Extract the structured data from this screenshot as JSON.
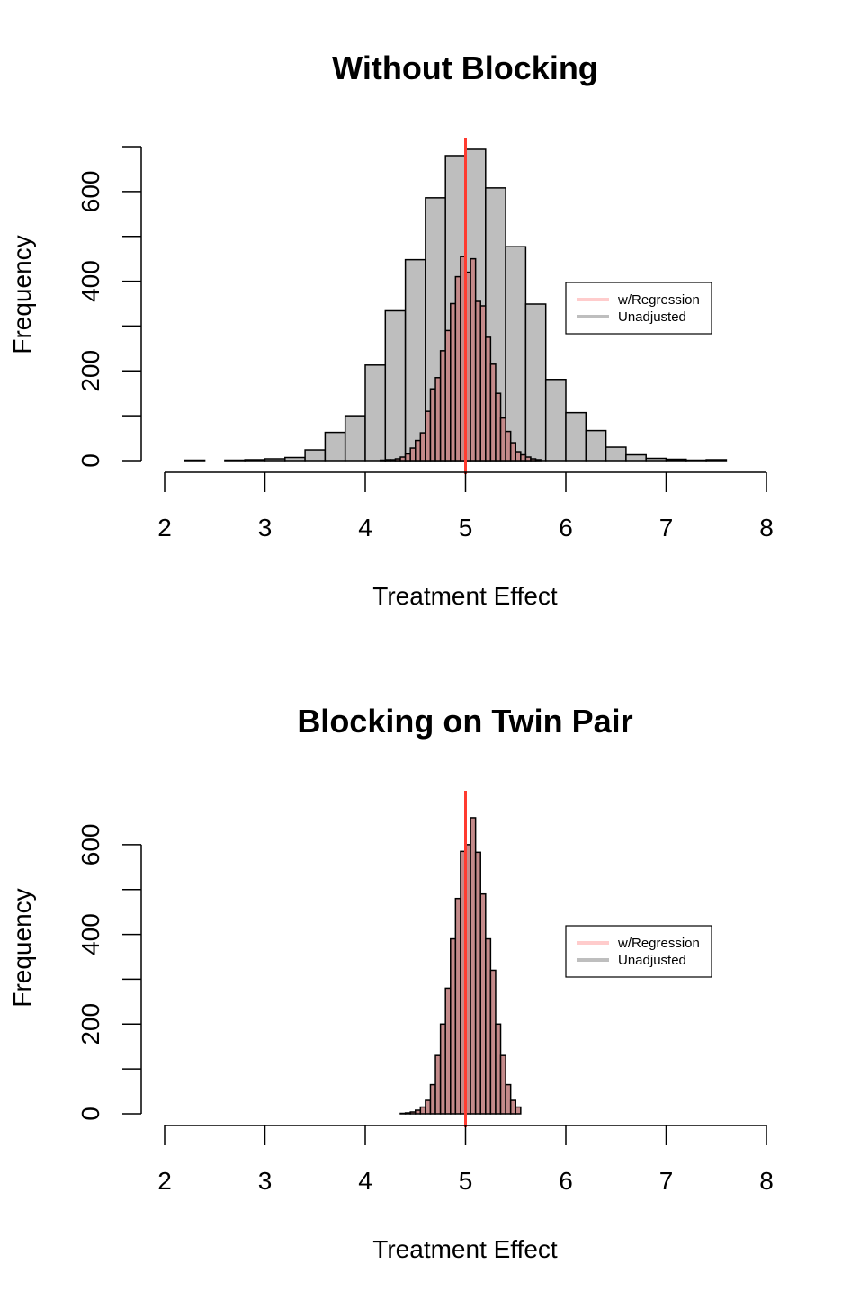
{
  "colors": {
    "unadjusted_fill": "#bebebe",
    "regression_fill": "#c48a8a",
    "bar_stroke": "#000000",
    "true_effect_line": "#ff3b30",
    "legend_regression": "#ffcccc",
    "legend_unadjusted": "#bebebe"
  },
  "chart_data": [
    {
      "type": "histogram",
      "title": "Without Blocking",
      "xlabel": "Treatment Effect",
      "ylabel": "Frequency",
      "xlim": [
        2,
        8
      ],
      "ylim": [
        0,
        700
      ],
      "x_ticks": [
        "2",
        "3",
        "4",
        "5",
        "6",
        "7",
        "8"
      ],
      "y_ticks": [
        "0",
        "200",
        "400",
        "600"
      ],
      "y_minor_ticks": [
        100,
        300,
        500,
        700
      ],
      "true_effect": 5,
      "legend": {
        "placement": "right",
        "entries": [
          "w/Regression",
          "Unadjusted"
        ]
      },
      "series": [
        {
          "name": "Unadjusted",
          "bin_width": 0.2,
          "bin_starts": [
            2.2,
            2.4,
            2.6,
            2.8,
            3.0,
            3.2,
            3.4,
            3.6,
            3.8,
            4.0,
            4.2,
            4.4,
            4.6,
            4.8,
            5.0,
            5.2,
            5.4,
            5.6,
            5.8,
            6.0,
            6.2,
            6.4,
            6.6,
            6.8,
            7.0,
            7.2,
            7.4
          ],
          "counts": [
            1,
            0,
            1,
            2,
            4,
            7,
            24,
            63,
            100,
            213,
            334,
            448,
            586,
            680,
            694,
            608,
            477,
            349,
            181,
            107,
            67,
            30,
            13,
            5,
            3,
            1,
            2
          ]
        },
        {
          "name": "w/Regression",
          "bin_width": 0.05,
          "bin_starts": [
            4.15,
            4.2,
            4.25,
            4.3,
            4.35,
            4.4,
            4.45,
            4.5,
            4.55,
            4.6,
            4.65,
            4.7,
            4.75,
            4.8,
            4.85,
            4.9,
            4.95,
            5.0,
            5.05,
            5.1,
            5.15,
            5.2,
            5.25,
            5.3,
            5.35,
            5.4,
            5.45,
            5.5,
            5.55,
            5.6,
            5.65,
            5.7
          ],
          "counts": [
            1,
            2,
            2,
            4,
            8,
            15,
            28,
            45,
            62,
            110,
            160,
            185,
            245,
            290,
            350,
            410,
            455,
            420,
            450,
            355,
            345,
            275,
            215,
            150,
            95,
            65,
            40,
            20,
            13,
            8,
            4,
            2
          ]
        }
      ]
    },
    {
      "type": "histogram",
      "title": "Blocking on Twin Pair",
      "xlabel": "Treatment Effect",
      "ylabel": "Frequency",
      "xlim": [
        2,
        8
      ],
      "ylim": [
        0,
        700
      ],
      "x_ticks": [
        "2",
        "3",
        "4",
        "5",
        "6",
        "7",
        "8"
      ],
      "y_ticks": [
        "0",
        "200",
        "400",
        "600"
      ],
      "y_minor_ticks": [
        100,
        300,
        500
      ],
      "true_effect": 5,
      "legend": {
        "placement": "right",
        "entries": [
          "w/Regression",
          "Unadjusted"
        ]
      },
      "series": [
        {
          "name": "w/Regression",
          "bin_width": 0.05,
          "bin_starts": [
            4.35,
            4.4,
            4.45,
            4.5,
            4.55,
            4.6,
            4.65,
            4.7,
            4.75,
            4.8,
            4.85,
            4.9,
            4.95,
            5.0,
            5.05,
            5.1,
            5.15,
            5.2,
            5.25,
            5.3,
            5.35,
            5.4,
            5.45,
            5.5
          ],
          "counts": [
            1,
            2,
            4,
            8,
            15,
            30,
            65,
            130,
            200,
            280,
            390,
            480,
            585,
            600,
            660,
            583,
            490,
            390,
            320,
            200,
            130,
            65,
            30,
            15
          ]
        }
      ]
    }
  ]
}
